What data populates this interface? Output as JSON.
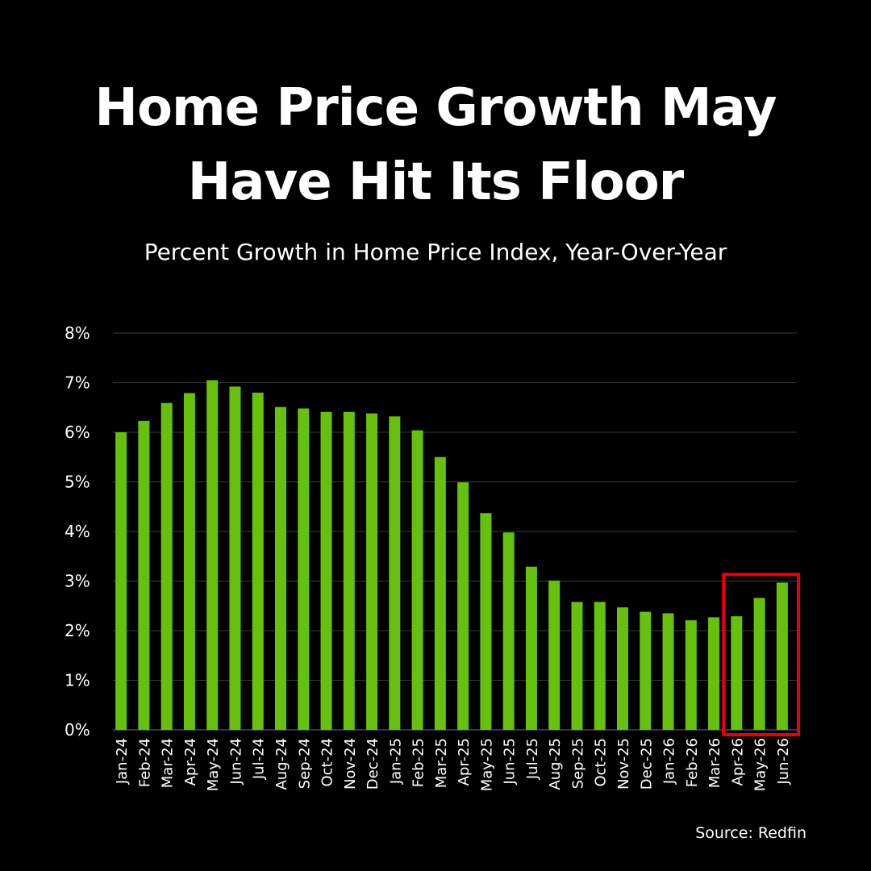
{
  "title_lines": [
    "Home Price Growth May",
    "Have Hit Its Floor"
  ],
  "subtitle": "Percent Growth in Home Price Index, Year-Over-Year",
  "source": "Source: Redfin",
  "colors": {
    "background": "#000000",
    "bar": "#66c10f",
    "grid": "#3a3a3a",
    "text": "#ffffff",
    "highlight": "#e8000f"
  },
  "chart_data": {
    "type": "bar",
    "categories": [
      "Jan-24",
      "Feb-24",
      "Mar-24",
      "Apr-24",
      "May-24",
      "Jun-24",
      "Jul-24",
      "Aug-24",
      "Sep-24",
      "Oct-24",
      "Nov-24",
      "Dec-24",
      "Jan-25",
      "Feb-25",
      "Mar-25",
      "Apr-25",
      "May-25",
      "Jun-25",
      "Jul-25",
      "Aug-25",
      "Sep-25",
      "Oct-25",
      "Nov-25",
      "Dec-25",
      "Jan-26",
      "Feb-26",
      "Mar-26",
      "Apr-26",
      "May-26",
      "Jun-26"
    ],
    "values": [
      6.0,
      6.23,
      6.59,
      6.79,
      7.05,
      6.92,
      6.8,
      6.51,
      6.48,
      6.41,
      6.41,
      6.38,
      6.32,
      6.04,
      5.5,
      4.99,
      4.37,
      3.98,
      3.29,
      3.01,
      2.58,
      2.58,
      2.47,
      2.38,
      2.35,
      2.21,
      2.27,
      2.29,
      2.66,
      2.97
    ],
    "yticks": [
      "0%",
      "1%",
      "2%",
      "3%",
      "4%",
      "5%",
      "6%",
      "7%",
      "8%"
    ],
    "ylim": [
      0,
      8
    ],
    "grid": true,
    "highlight": {
      "from": "Apr-26",
      "to": "Jun-26"
    }
  }
}
